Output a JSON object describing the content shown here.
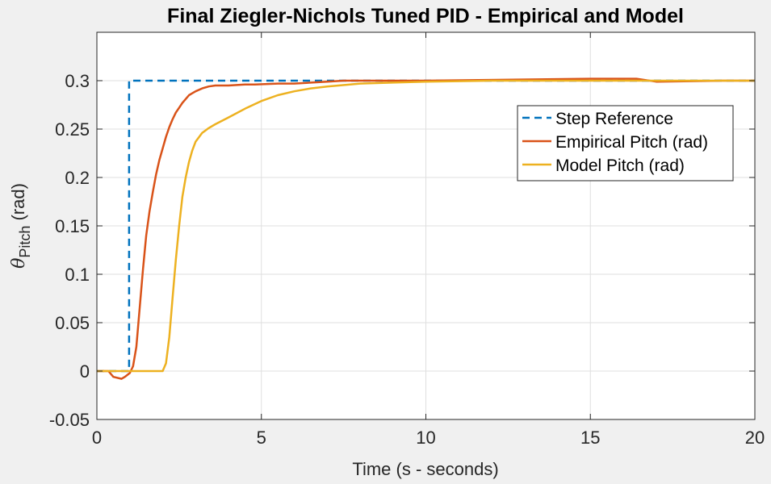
{
  "chart_data": {
    "type": "line",
    "title": "Final Ziegler-Nichols Tuned PID - Empirical and Model",
    "xlabel": "Time (s - seconds)",
    "ylabel_symbol": "θ",
    "ylabel_sub": "Pitch",
    "ylabel_unit": " (rad)",
    "xlim": [
      0,
      20
    ],
    "ylim": [
      -0.05,
      0.35
    ],
    "xticks": [
      0,
      5,
      10,
      15,
      20
    ],
    "xtick_labels": [
      "0",
      "5",
      "10",
      "15",
      "20"
    ],
    "yticks": [
      -0.05,
      0,
      0.05,
      0.1,
      0.15,
      0.2,
      0.25,
      0.3
    ],
    "ytick_labels": [
      "-0.05",
      "0",
      "0.05",
      "0.1",
      "0.15",
      "0.2",
      "0.25",
      "0.3"
    ],
    "grid": true,
    "legend_position": "upper-right",
    "series": [
      {
        "name": "Step Reference",
        "color": "#0072BD",
        "style": "dashed",
        "x": [
          0,
          0.98,
          0.98,
          20
        ],
        "y": [
          0,
          0,
          0.3,
          0.3
        ]
      },
      {
        "name": "Empirical Pitch (rad)",
        "color": "#D95319",
        "style": "solid",
        "x": [
          0,
          0.35,
          0.5,
          0.75,
          0.85,
          1.0,
          1.1,
          1.2,
          1.3,
          1.4,
          1.5,
          1.6,
          1.7,
          1.8,
          1.9,
          2.0,
          2.1,
          2.2,
          2.3,
          2.4,
          2.5,
          2.6,
          2.7,
          2.8,
          2.9,
          3.0,
          3.2,
          3.4,
          3.6,
          4.0,
          4.5,
          4.8,
          5.5,
          6.0,
          7.0,
          7.5,
          9.0,
          10.0,
          15.0,
          16.4,
          17.0,
          19.0,
          20.0
        ],
        "y": [
          0,
          0,
          -0.006,
          -0.008,
          -0.006,
          -0.002,
          0.005,
          0.025,
          0.065,
          0.105,
          0.14,
          0.165,
          0.185,
          0.203,
          0.218,
          0.23,
          0.242,
          0.252,
          0.26,
          0.267,
          0.272,
          0.277,
          0.281,
          0.285,
          0.287,
          0.289,
          0.292,
          0.294,
          0.295,
          0.295,
          0.296,
          0.296,
          0.297,
          0.297,
          0.299,
          0.3,
          0.3,
          0.3,
          0.302,
          0.302,
          0.299,
          0.3,
          0.3
        ]
      },
      {
        "name": "Model Pitch (rad)",
        "color": "#EDB120",
        "style": "solid",
        "x": [
          0,
          2.0,
          2.1,
          2.2,
          2.3,
          2.4,
          2.5,
          2.6,
          2.7,
          2.8,
          2.9,
          3.0,
          3.2,
          3.4,
          3.6,
          4.0,
          4.5,
          5.0,
          5.5,
          6.0,
          6.5,
          7.0,
          8.0,
          9.0,
          10.0,
          12.0,
          15.0,
          20.0
        ],
        "y": [
          0,
          0,
          0.008,
          0.035,
          0.075,
          0.115,
          0.15,
          0.18,
          0.2,
          0.216,
          0.228,
          0.237,
          0.246,
          0.251,
          0.255,
          0.262,
          0.271,
          0.279,
          0.285,
          0.289,
          0.292,
          0.294,
          0.297,
          0.298,
          0.299,
          0.3,
          0.3,
          0.3
        ]
      }
    ]
  }
}
